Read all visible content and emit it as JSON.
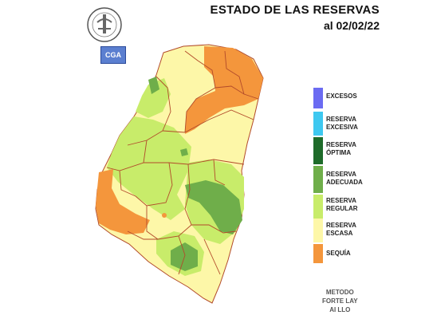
{
  "title": {
    "line1": "ESTADO DE LAS RESERVAS",
    "line2": "al 02/02/22"
  },
  "logos": {
    "seal_text": "BOLSA DE CEREALES DE ENTRE RIOS",
    "cga_text": "CGA"
  },
  "legend": [
    {
      "label": "EXCESOS",
      "color": "#6b6bf2"
    },
    {
      "label": "RESERVA\nEXCESIVA",
      "color": "#3ec8f0"
    },
    {
      "label": "RESERVA\nÓPTIMA",
      "color": "#1e6b2a"
    },
    {
      "label": "RESERVA\nADECUADA",
      "color": "#6fae4a"
    },
    {
      "label": "RESERVA\nREGULAR",
      "color": "#c8ec6a"
    },
    {
      "label": "RESERVA\nESCASA",
      "color": "#fdf7a8"
    },
    {
      "label": "SEQUÍA",
      "color": "#f4963c"
    }
  ],
  "method": {
    "line1": "METODO",
    "line2": "FORTE LAY",
    "line3": "AI LLO"
  }
}
